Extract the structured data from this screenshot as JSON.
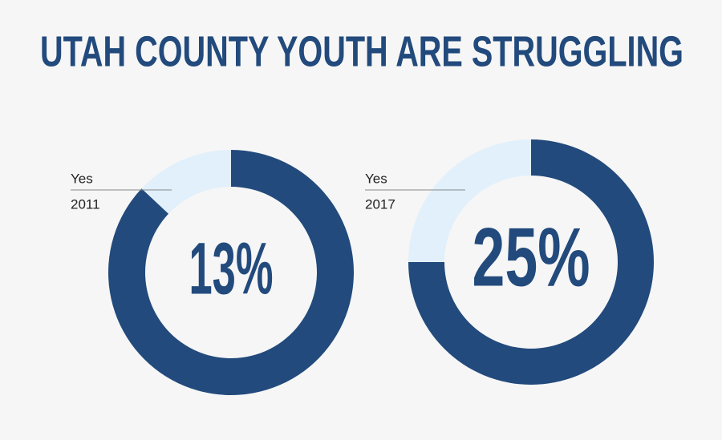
{
  "title": "UTAH COUNTY YOUTH ARE STRUGGLING",
  "chart_data": [
    {
      "type": "donut",
      "subtitle": "2011",
      "categories": [
        "Yes",
        null
      ],
      "values": [
        13,
        87
      ],
      "value_labels": [
        "13%",
        null
      ],
      "colors": [
        "#e1f0fb",
        "#224a7c"
      ]
    },
    {
      "type": "donut",
      "subtitle": "2017",
      "categories": [
        "Yes",
        null
      ],
      "values": [
        25,
        75
      ],
      "value_labels": [
        "25%",
        null
      ],
      "colors": [
        "#e1f0fb",
        "#224a7c"
      ]
    }
  ]
}
